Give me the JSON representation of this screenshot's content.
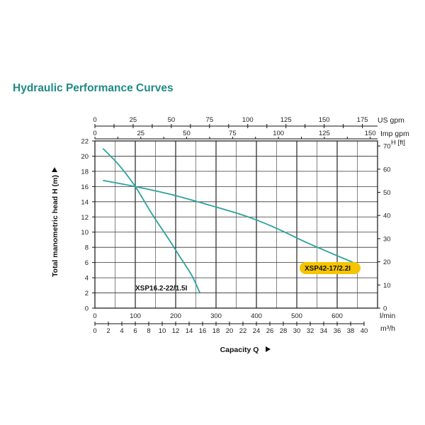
{
  "title": "Hydraulic Performance Curves",
  "colors": {
    "title": "#1f8a84",
    "curve": "#2aa39c",
    "grid": "#333333",
    "highlight": "#f5c400"
  },
  "chart_data": {
    "type": "line",
    "xlabel": "Capacity Q",
    "ylabel": "Total manometric head H (m)",
    "xlim": [
      0,
      700
    ],
    "ylim": [
      0,
      22
    ],
    "x_ticks_lmin": [
      0,
      100,
      200,
      300,
      400,
      500,
      600
    ],
    "y_ticks_m": [
      0,
      2,
      4,
      6,
      8,
      10,
      12,
      14,
      16,
      18,
      20,
      22
    ],
    "x_unit_lmin": "l/min",
    "x_unit_m3h": "m³/h",
    "y_unit_ft": "H [ft]",
    "m3h_ticks": [
      0,
      2,
      4,
      6,
      8,
      10,
      12,
      14,
      16,
      18,
      20,
      22,
      24,
      26,
      28,
      30,
      32,
      34,
      36,
      38,
      40
    ],
    "us_gpm_unit": "US gpm",
    "us_gpm_ticks": [
      0,
      25,
      50,
      75,
      100,
      125,
      150,
      175
    ],
    "imp_gpm_unit": "Imp gpm",
    "imp_gpm_ticks": [
      0,
      25,
      50,
      75,
      100,
      125,
      150
    ],
    "ft_ticks": [
      0,
      10,
      20,
      30,
      40,
      50,
      60,
      70
    ],
    "grid": true,
    "series": [
      {
        "name": "XSP16.2-22/1.5I",
        "x": [
          20,
          60,
          100,
          140,
          180,
          210,
          240,
          260
        ],
        "y": [
          21,
          18.8,
          16,
          12.5,
          9.3,
          6.8,
          4.3,
          2
        ]
      },
      {
        "name": "XSP42-17/2.2I",
        "x": [
          20,
          100,
          200,
          300,
          380,
          450,
          530,
          640
        ],
        "y": [
          16.8,
          16,
          14.8,
          13.3,
          12,
          10.5,
          8.5,
          6
        ]
      }
    ]
  }
}
